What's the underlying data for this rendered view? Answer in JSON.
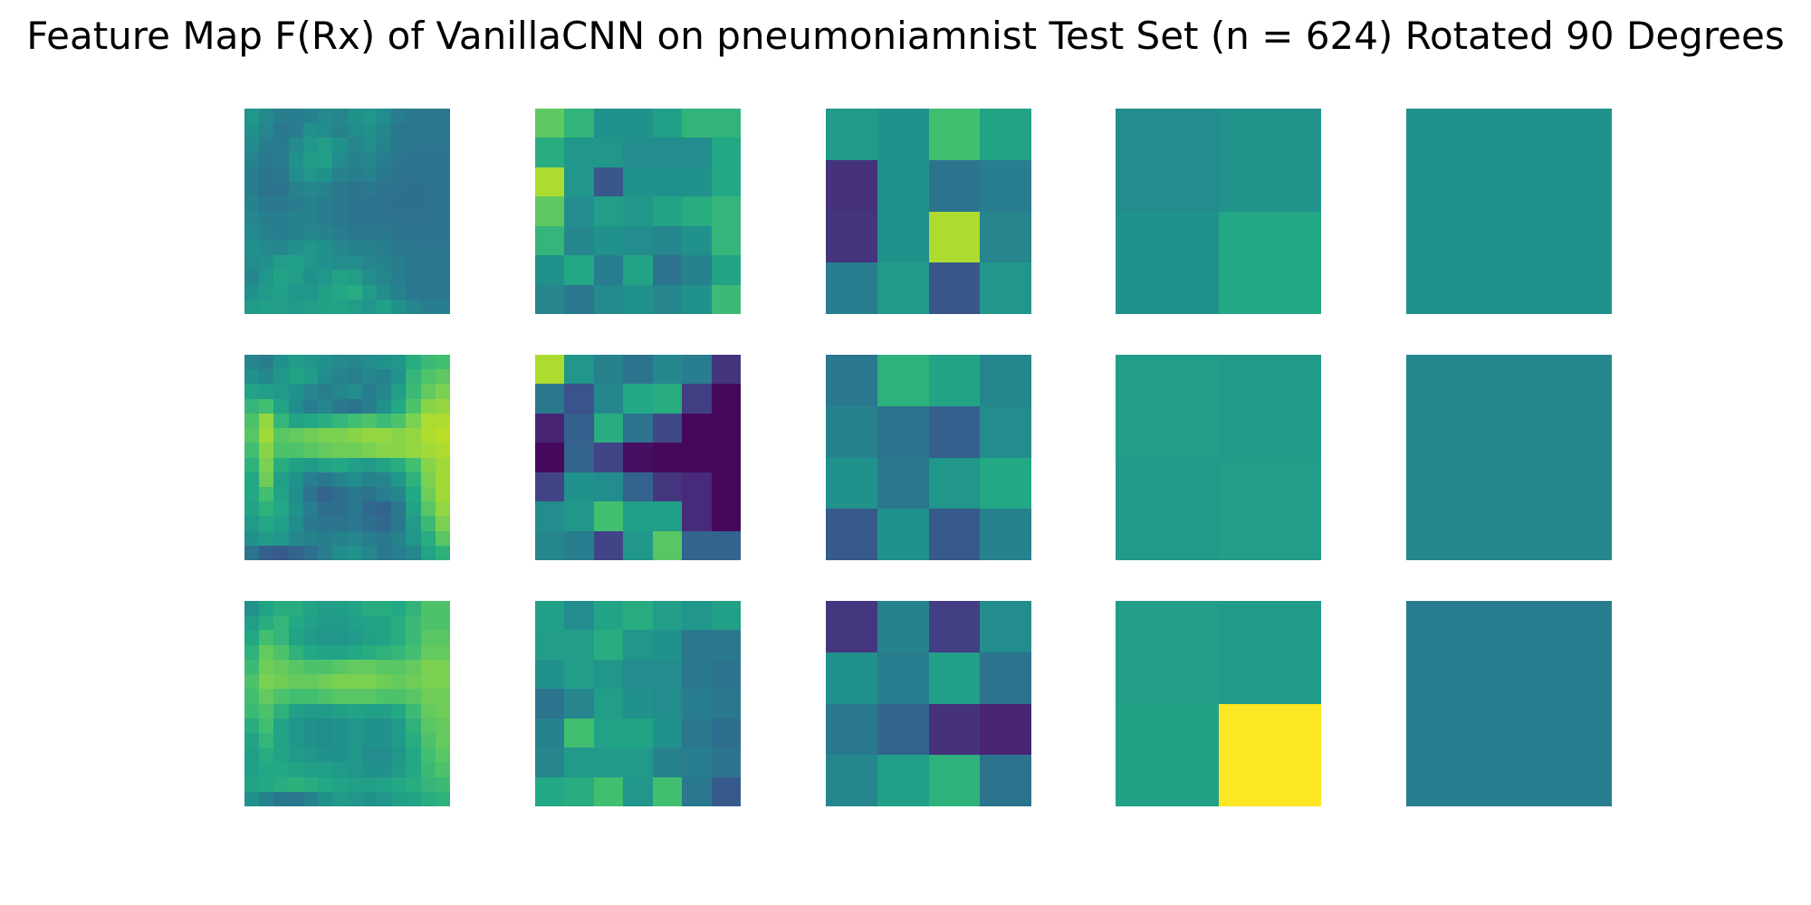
{
  "title": "Feature Map F(Rx) of VanillaCNN on pneumoniamnist Test Set (n = 624) Rotated 90 Degrees",
  "chart_data": {
    "type": "heatmap",
    "title": "Feature Map F(Rx) of VanillaCNN on pneumoniamnist Test Set (n = 624) Rotated 90 Degrees",
    "colormap": "viridis",
    "axes": "off",
    "grid": false,
    "legend": "none",
    "layout": {
      "rows": 3,
      "cols": 5
    },
    "panels": [
      {
        "row": 0,
        "col": 0,
        "size": 14,
        "values": [
          [
            0.52,
            0.47,
            0.42,
            0.42,
            0.44,
            0.47,
            0.45,
            0.5,
            0.52,
            0.48,
            0.42,
            0.4,
            0.4,
            0.4
          ],
          [
            0.5,
            0.45,
            0.4,
            0.42,
            0.5,
            0.48,
            0.44,
            0.48,
            0.5,
            0.46,
            0.4,
            0.4,
            0.4,
            0.4
          ],
          [
            0.47,
            0.42,
            0.41,
            0.47,
            0.52,
            0.55,
            0.5,
            0.45,
            0.48,
            0.44,
            0.4,
            0.39,
            0.39,
            0.39
          ],
          [
            0.44,
            0.4,
            0.42,
            0.5,
            0.55,
            0.56,
            0.48,
            0.44,
            0.46,
            0.42,
            0.39,
            0.38,
            0.38,
            0.38
          ],
          [
            0.42,
            0.38,
            0.4,
            0.48,
            0.52,
            0.5,
            0.44,
            0.42,
            0.44,
            0.4,
            0.38,
            0.37,
            0.38,
            0.38
          ],
          [
            0.42,
            0.38,
            0.38,
            0.44,
            0.46,
            0.44,
            0.4,
            0.38,
            0.4,
            0.38,
            0.37,
            0.36,
            0.37,
            0.38
          ],
          [
            0.44,
            0.4,
            0.4,
            0.42,
            0.44,
            0.42,
            0.4,
            0.38,
            0.38,
            0.37,
            0.36,
            0.36,
            0.37,
            0.38
          ],
          [
            0.46,
            0.42,
            0.42,
            0.44,
            0.44,
            0.42,
            0.4,
            0.38,
            0.38,
            0.38,
            0.37,
            0.37,
            0.37,
            0.38
          ],
          [
            0.47,
            0.44,
            0.42,
            0.44,
            0.46,
            0.44,
            0.42,
            0.4,
            0.4,
            0.4,
            0.38,
            0.38,
            0.38,
            0.38
          ],
          [
            0.5,
            0.47,
            0.46,
            0.5,
            0.52,
            0.5,
            0.46,
            0.44,
            0.44,
            0.42,
            0.4,
            0.39,
            0.39,
            0.39
          ],
          [
            0.48,
            0.5,
            0.55,
            0.56,
            0.52,
            0.5,
            0.48,
            0.48,
            0.46,
            0.44,
            0.42,
            0.4,
            0.4,
            0.4
          ],
          [
            0.46,
            0.52,
            0.58,
            0.55,
            0.5,
            0.52,
            0.58,
            0.55,
            0.48,
            0.46,
            0.42,
            0.4,
            0.4,
            0.4
          ],
          [
            0.5,
            0.54,
            0.56,
            0.52,
            0.52,
            0.56,
            0.6,
            0.62,
            0.54,
            0.48,
            0.44,
            0.4,
            0.4,
            0.4
          ],
          [
            0.54,
            0.56,
            0.55,
            0.54,
            0.55,
            0.57,
            0.58,
            0.55,
            0.52,
            0.56,
            0.5,
            0.45,
            0.42,
            0.42
          ]
        ]
      },
      {
        "row": 0,
        "col": 1,
        "size": 7,
        "values": [
          [
            0.75,
            0.65,
            0.5,
            0.5,
            0.56,
            0.65,
            0.65
          ],
          [
            0.62,
            0.52,
            0.52,
            0.48,
            0.48,
            0.48,
            0.6
          ],
          [
            0.88,
            0.52,
            0.27,
            0.5,
            0.5,
            0.5,
            0.6
          ],
          [
            0.75,
            0.48,
            0.55,
            0.52,
            0.58,
            0.62,
            0.66
          ],
          [
            0.66,
            0.46,
            0.5,
            0.48,
            0.46,
            0.5,
            0.66
          ],
          [
            0.5,
            0.6,
            0.42,
            0.58,
            0.38,
            0.44,
            0.58
          ],
          [
            0.45,
            0.4,
            0.47,
            0.5,
            0.45,
            0.5,
            0.68
          ]
        ]
      },
      {
        "row": 0,
        "col": 2,
        "size": 4,
        "values": [
          [
            0.54,
            0.5,
            0.7,
            0.58
          ],
          [
            0.14,
            0.5,
            0.38,
            0.42
          ],
          [
            0.15,
            0.5,
            0.88,
            0.45
          ],
          [
            0.42,
            0.54,
            0.27,
            0.52
          ]
        ]
      },
      {
        "row": 0,
        "col": 3,
        "size": 2,
        "values": [
          [
            0.48,
            0.51
          ],
          [
            0.5,
            0.6
          ]
        ]
      },
      {
        "row": 0,
        "col": 4,
        "size": 1,
        "values": [
          [
            0.5
          ]
        ]
      },
      {
        "row": 1,
        "col": 0,
        "size": 14,
        "values": [
          [
            0.45,
            0.42,
            0.5,
            0.55,
            0.52,
            0.5,
            0.47,
            0.46,
            0.48,
            0.5,
            0.52,
            0.62,
            0.68,
            0.7
          ],
          [
            0.5,
            0.46,
            0.52,
            0.58,
            0.55,
            0.48,
            0.44,
            0.42,
            0.46,
            0.44,
            0.5,
            0.66,
            0.72,
            0.75
          ],
          [
            0.58,
            0.55,
            0.54,
            0.5,
            0.46,
            0.42,
            0.46,
            0.48,
            0.42,
            0.46,
            0.55,
            0.68,
            0.76,
            0.8
          ],
          [
            0.66,
            0.7,
            0.58,
            0.48,
            0.42,
            0.45,
            0.4,
            0.38,
            0.42,
            0.5,
            0.6,
            0.72,
            0.82,
            0.84
          ],
          [
            0.72,
            0.84,
            0.66,
            0.58,
            0.6,
            0.62,
            0.66,
            0.7,
            0.72,
            0.68,
            0.72,
            0.8,
            0.88,
            0.88
          ],
          [
            0.74,
            0.86,
            0.74,
            0.76,
            0.78,
            0.8,
            0.8,
            0.82,
            0.84,
            0.84,
            0.82,
            0.84,
            0.88,
            0.9
          ],
          [
            0.7,
            0.82,
            0.72,
            0.72,
            0.74,
            0.76,
            0.78,
            0.78,
            0.8,
            0.82,
            0.82,
            0.84,
            0.86,
            0.88
          ],
          [
            0.64,
            0.8,
            0.62,
            0.56,
            0.54,
            0.58,
            0.6,
            0.56,
            0.54,
            0.58,
            0.62,
            0.7,
            0.82,
            0.86
          ],
          [
            0.6,
            0.78,
            0.56,
            0.5,
            0.42,
            0.4,
            0.44,
            0.48,
            0.44,
            0.46,
            0.52,
            0.64,
            0.8,
            0.86
          ],
          [
            0.6,
            0.7,
            0.58,
            0.48,
            0.38,
            0.32,
            0.36,
            0.4,
            0.38,
            0.42,
            0.46,
            0.6,
            0.78,
            0.86
          ],
          [
            0.58,
            0.64,
            0.6,
            0.5,
            0.42,
            0.36,
            0.36,
            0.4,
            0.34,
            0.32,
            0.4,
            0.58,
            0.74,
            0.84
          ],
          [
            0.54,
            0.6,
            0.56,
            0.48,
            0.4,
            0.38,
            0.38,
            0.4,
            0.36,
            0.34,
            0.4,
            0.54,
            0.68,
            0.8
          ],
          [
            0.5,
            0.54,
            0.52,
            0.46,
            0.44,
            0.42,
            0.44,
            0.46,
            0.42,
            0.4,
            0.44,
            0.52,
            0.62,
            0.74
          ],
          [
            0.38,
            0.3,
            0.28,
            0.32,
            0.36,
            0.42,
            0.48,
            0.5,
            0.46,
            0.4,
            0.42,
            0.46,
            0.58,
            0.64
          ]
        ]
      },
      {
        "row": 1,
        "col": 1,
        "size": 7,
        "values": [
          [
            0.88,
            0.52,
            0.44,
            0.38,
            0.46,
            0.42,
            0.15
          ],
          [
            0.4,
            0.25,
            0.46,
            0.6,
            0.62,
            0.18,
            0.02
          ],
          [
            0.1,
            0.3,
            0.62,
            0.38,
            0.22,
            0.02,
            0.02
          ],
          [
            0.02,
            0.32,
            0.2,
            0.04,
            0.02,
            0.02,
            0.02
          ],
          [
            0.2,
            0.5,
            0.48,
            0.32,
            0.16,
            0.12,
            0.02
          ],
          [
            0.48,
            0.52,
            0.7,
            0.56,
            0.56,
            0.12,
            0.02
          ],
          [
            0.46,
            0.42,
            0.2,
            0.52,
            0.74,
            0.32,
            0.32
          ]
        ]
      },
      {
        "row": 1,
        "col": 2,
        "size": 4,
        "values": [
          [
            0.4,
            0.64,
            0.58,
            0.46
          ],
          [
            0.44,
            0.38,
            0.3,
            0.48
          ],
          [
            0.5,
            0.4,
            0.52,
            0.6
          ],
          [
            0.28,
            0.5,
            0.28,
            0.44
          ]
        ]
      },
      {
        "row": 1,
        "col": 3,
        "size": 2,
        "values": [
          [
            0.55,
            0.54
          ],
          [
            0.54,
            0.55
          ]
        ]
      },
      {
        "row": 1,
        "col": 4,
        "size": 1,
        "values": [
          [
            0.46
          ]
        ]
      },
      {
        "row": 2,
        "col": 0,
        "size": 14,
        "values": [
          [
            0.5,
            0.58,
            0.62,
            0.62,
            0.58,
            0.55,
            0.55,
            0.58,
            0.62,
            0.62,
            0.6,
            0.65,
            0.72,
            0.72
          ],
          [
            0.55,
            0.62,
            0.66,
            0.6,
            0.56,
            0.54,
            0.54,
            0.56,
            0.58,
            0.58,
            0.62,
            0.68,
            0.72,
            0.72
          ],
          [
            0.6,
            0.7,
            0.66,
            0.58,
            0.54,
            0.52,
            0.52,
            0.54,
            0.56,
            0.58,
            0.62,
            0.68,
            0.74,
            0.74
          ],
          [
            0.64,
            0.76,
            0.72,
            0.64,
            0.6,
            0.58,
            0.58,
            0.6,
            0.62,
            0.64,
            0.66,
            0.7,
            0.76,
            0.76
          ],
          [
            0.68,
            0.78,
            0.76,
            0.74,
            0.72,
            0.72,
            0.74,
            0.76,
            0.76,
            0.74,
            0.74,
            0.76,
            0.8,
            0.8
          ],
          [
            0.72,
            0.8,
            0.78,
            0.76,
            0.76,
            0.78,
            0.8,
            0.8,
            0.8,
            0.78,
            0.76,
            0.78,
            0.8,
            0.8
          ],
          [
            0.7,
            0.76,
            0.72,
            0.7,
            0.7,
            0.72,
            0.74,
            0.74,
            0.74,
            0.72,
            0.72,
            0.74,
            0.78,
            0.78
          ],
          [
            0.68,
            0.72,
            0.64,
            0.56,
            0.54,
            0.54,
            0.56,
            0.58,
            0.56,
            0.56,
            0.6,
            0.68,
            0.76,
            0.78
          ],
          [
            0.62,
            0.7,
            0.58,
            0.52,
            0.5,
            0.48,
            0.5,
            0.52,
            0.5,
            0.5,
            0.54,
            0.64,
            0.74,
            0.76
          ],
          [
            0.58,
            0.66,
            0.58,
            0.52,
            0.5,
            0.48,
            0.5,
            0.52,
            0.5,
            0.5,
            0.54,
            0.62,
            0.72,
            0.76
          ],
          [
            0.56,
            0.62,
            0.58,
            0.54,
            0.52,
            0.5,
            0.5,
            0.52,
            0.48,
            0.48,
            0.52,
            0.6,
            0.7,
            0.74
          ],
          [
            0.56,
            0.6,
            0.6,
            0.58,
            0.56,
            0.56,
            0.54,
            0.52,
            0.5,
            0.5,
            0.54,
            0.6,
            0.68,
            0.72
          ],
          [
            0.58,
            0.6,
            0.62,
            0.64,
            0.62,
            0.6,
            0.58,
            0.56,
            0.56,
            0.58,
            0.6,
            0.62,
            0.66,
            0.68
          ],
          [
            0.5,
            0.44,
            0.4,
            0.4,
            0.44,
            0.5,
            0.54,
            0.52,
            0.5,
            0.52,
            0.56,
            0.58,
            0.62,
            0.64
          ]
        ]
      },
      {
        "row": 2,
        "col": 1,
        "size": 7,
        "values": [
          [
            0.56,
            0.48,
            0.58,
            0.62,
            0.55,
            0.52,
            0.56
          ],
          [
            0.55,
            0.55,
            0.62,
            0.52,
            0.5,
            0.4,
            0.4
          ],
          [
            0.5,
            0.55,
            0.52,
            0.48,
            0.48,
            0.4,
            0.38
          ],
          [
            0.38,
            0.45,
            0.55,
            0.5,
            0.48,
            0.42,
            0.4
          ],
          [
            0.44,
            0.7,
            0.58,
            0.58,
            0.5,
            0.4,
            0.36
          ],
          [
            0.45,
            0.54,
            0.54,
            0.54,
            0.44,
            0.42,
            0.38
          ],
          [
            0.6,
            0.62,
            0.7,
            0.52,
            0.7,
            0.4,
            0.28
          ]
        ]
      },
      {
        "row": 2,
        "col": 2,
        "size": 4,
        "values": [
          [
            0.16,
            0.44,
            0.18,
            0.48
          ],
          [
            0.5,
            0.42,
            0.56,
            0.38
          ],
          [
            0.4,
            0.32,
            0.14,
            0.1
          ],
          [
            0.46,
            0.56,
            0.64,
            0.38
          ]
        ]
      },
      {
        "row": 2,
        "col": 3,
        "size": 2,
        "values": [
          [
            0.55,
            0.54
          ],
          [
            0.57,
            1.0
          ]
        ]
      },
      {
        "row": 2,
        "col": 4,
        "size": 1,
        "values": [
          [
            0.42
          ]
        ]
      }
    ]
  }
}
